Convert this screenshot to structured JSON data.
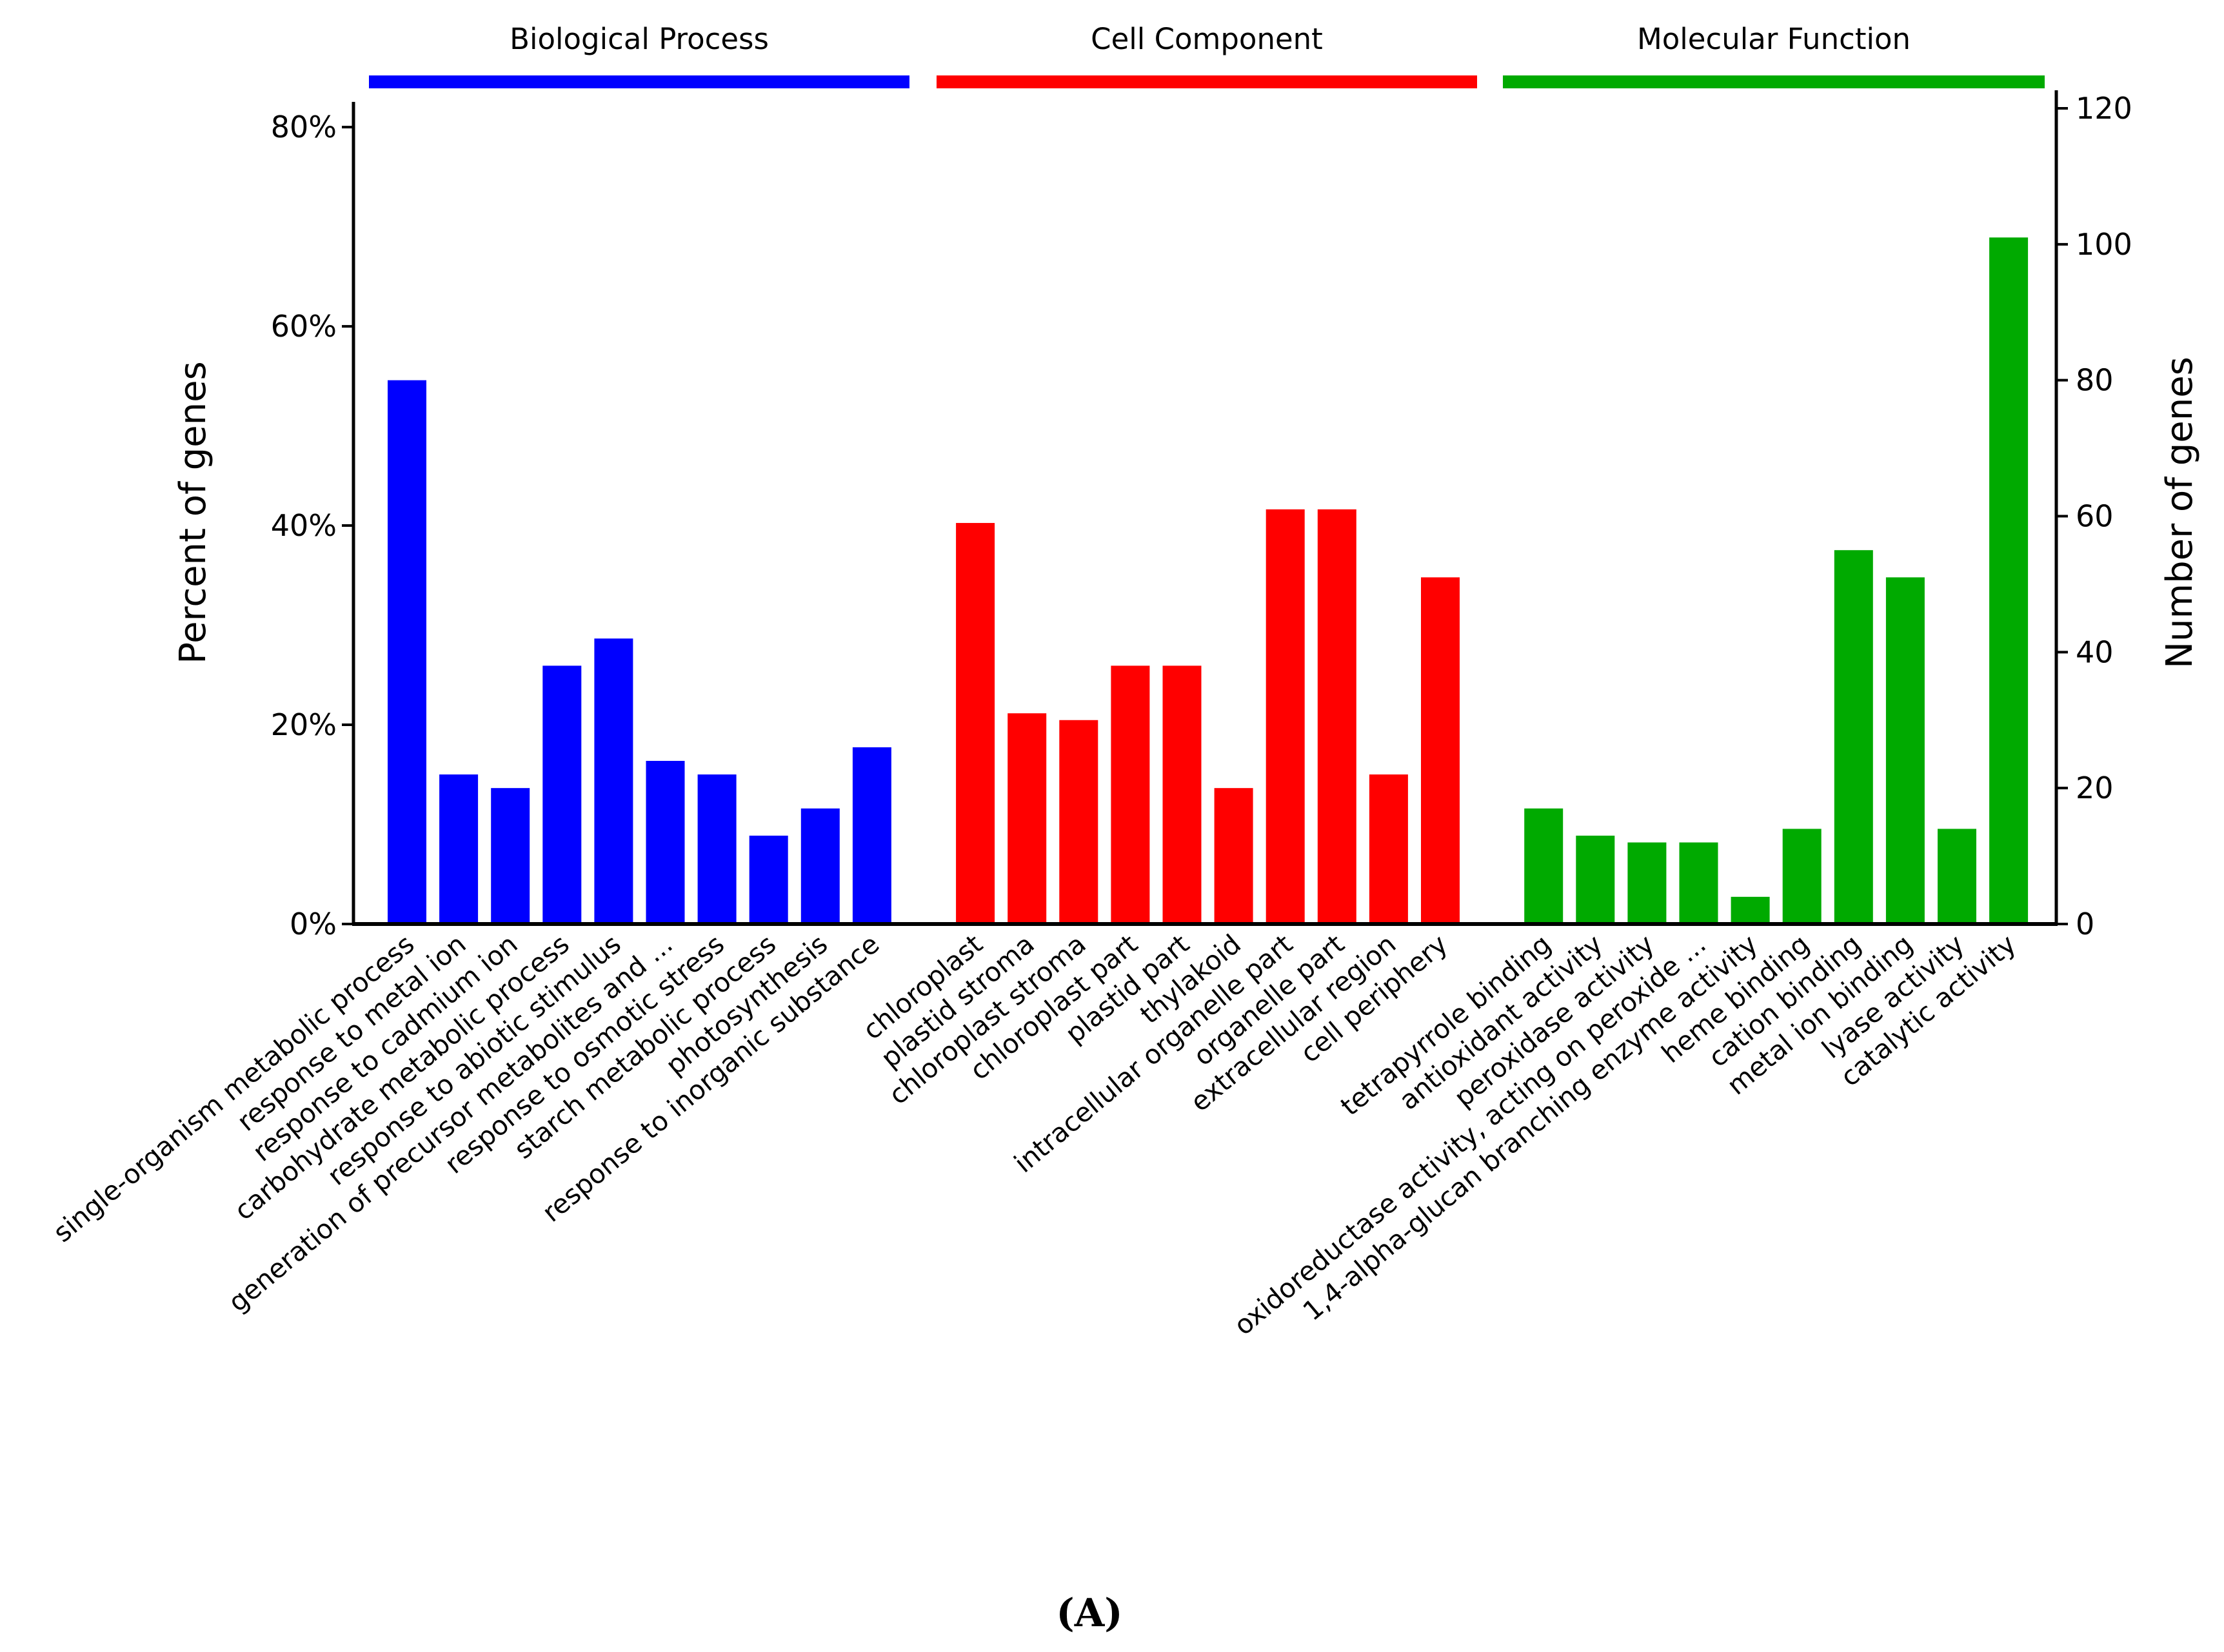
{
  "chart_data": {
    "type": "bar",
    "title": "",
    "panel_label": "(A)",
    "ylabel_left": "Percent of genes",
    "ylabel_right": "Number of genes",
    "left_axis": {
      "ticks": [
        "0%",
        "20%",
        "40%",
        "60%",
        "80%"
      ],
      "tick_values": [
        0,
        20,
        40,
        60,
        80
      ]
    },
    "right_axis": {
      "ticks": [
        "0",
        "20",
        "40",
        "60",
        "80",
        "100",
        "120"
      ],
      "tick_values": [
        0,
        20,
        40,
        60,
        80,
        100,
        120
      ],
      "range": [
        0,
        120
      ]
    },
    "groups": [
      {
        "name": "Biological Process",
        "color": "#0000ff",
        "categories": [
          "single-organism metabolic process",
          "response to metal ion",
          "response to cadmium ion",
          "carbohydrate metabolic process",
          "response to abiotic stimulus",
          "generation of precursor metabolites and ...",
          "response to osmotic stress",
          "starch metabolic process",
          "photosynthesis",
          "response to inorganic substance"
        ],
        "values": [
          80,
          22,
          20,
          38,
          42,
          24,
          22,
          13,
          17,
          26
        ]
      },
      {
        "name": "Cell Component",
        "color": "#ff0000",
        "categories": [
          "chloroplast",
          "plastid stroma",
          "chloroplast stroma",
          "chloroplast part",
          "plastid part",
          "thylakoid",
          "intracellular organelle part",
          "organelle part",
          "extracellular region",
          "cell periphery"
        ],
        "values": [
          59,
          31,
          30,
          38,
          38,
          20,
          61,
          61,
          22,
          51
        ]
      },
      {
        "name": "Molecular Function",
        "color": "#00aa00",
        "categories": [
          "tetrapyrrole binding",
          "antioxidant activity",
          "peroxidase activity",
          "oxidoreductase activity, acting on peroxide ...",
          "1,4-alpha-glucan branching enzyme activity",
          "heme binding",
          "cation binding",
          "metal ion binding",
          "lyase activity",
          "catalytic activity"
        ],
        "values": [
          17,
          13,
          12,
          12,
          4,
          14,
          55,
          51,
          14,
          101
        ]
      }
    ]
  }
}
